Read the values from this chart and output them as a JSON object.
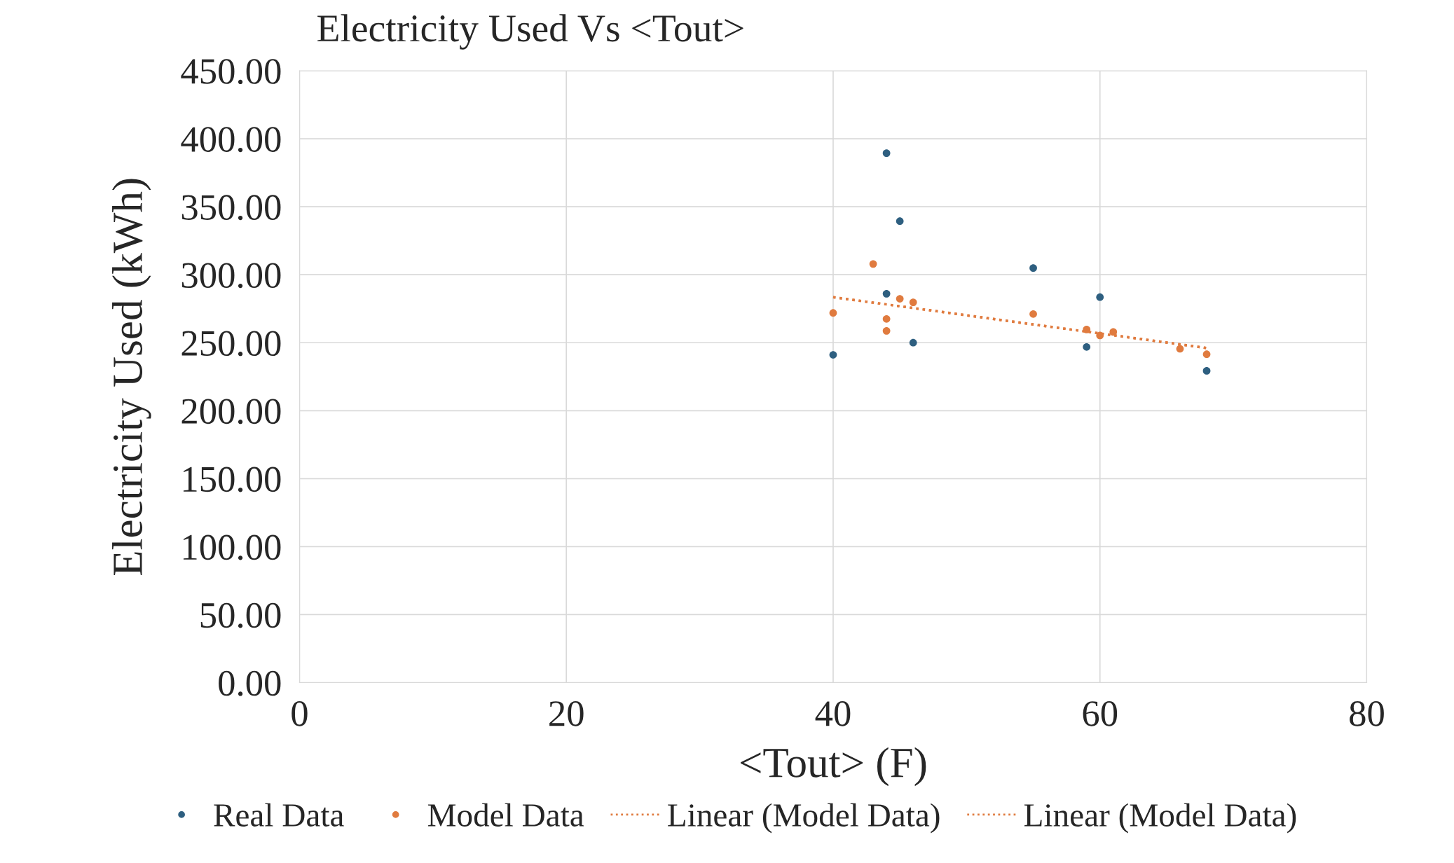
{
  "chart_data": {
    "type": "scatter",
    "title": "Electricity Used Vs <Tout>",
    "xlabel": "<Tout> (F)",
    "ylabel": "Electricity Used (kWh)",
    "xlim": [
      0,
      80
    ],
    "xticks": [
      0,
      20,
      40,
      60,
      80
    ],
    "ylim": [
      0,
      450
    ],
    "yticks": [
      {
        "value": 0,
        "label": "0.00"
      },
      {
        "value": 50,
        "label": "50.00"
      },
      {
        "value": 100,
        "label": "100.00"
      },
      {
        "value": 150,
        "label": "150.00"
      },
      {
        "value": 200,
        "label": "200.00"
      },
      {
        "value": 250,
        "label": "250.00"
      },
      {
        "value": 300,
        "label": "300.00"
      },
      {
        "value": 350,
        "label": "350.00"
      },
      {
        "value": 400,
        "label": "400.00"
      },
      {
        "value": 450,
        "label": "450.00"
      }
    ],
    "grid": true,
    "legend": "bottom",
    "series": [
      {
        "name": "Real Data",
        "marker": "circle",
        "color": "#2e5f80",
        "x": [
          40,
          44,
          45,
          44,
          46,
          55,
          60,
          59,
          68
        ],
        "values": [
          241.1,
          389.4,
          339.4,
          286,
          250,
          304.9,
          283.5,
          246.9,
          229.3
        ]
      },
      {
        "name": "Model Data",
        "marker": "circle",
        "color": "#e07b3f",
        "x": [
          40,
          43,
          45,
          46,
          44,
          44,
          55,
          59,
          60,
          61,
          66,
          68
        ],
        "values": [
          271.9,
          307.9,
          282.3,
          279.7,
          267.5,
          258.7,
          271.1,
          259.7,
          255.3,
          257.9,
          245.5,
          241.5
        ]
      },
      {
        "name": "Linear (Model Data)",
        "type": "line",
        "line_style": "dotted",
        "color": "#e07b3f",
        "x": [
          40,
          68
        ],
        "values": [
          283.5,
          246.1
        ]
      },
      {
        "name": "Linear (Model Data)",
        "type": "line",
        "line_style": "dotted",
        "color": "#e07b3f",
        "x": [
          40,
          68
        ],
        "values": [
          283.5,
          246.1
        ]
      }
    ]
  }
}
